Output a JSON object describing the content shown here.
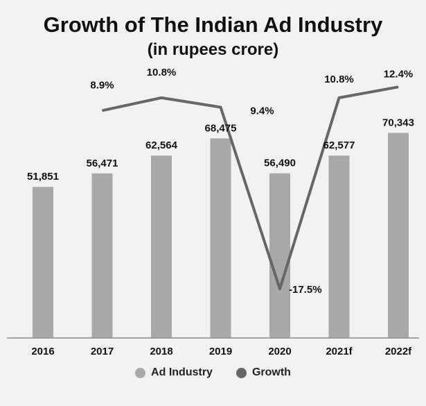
{
  "colors": {
    "bar": "#a8a8a8",
    "line": "#666666",
    "background": "#f2f2f2",
    "axis": "#8c8c8c",
    "text": "#111111"
  },
  "chart_data": {
    "type": "bar",
    "title": "Growth of The Indian Ad Industry",
    "subtitle": "(in rupees crore)",
    "categories": [
      "2016",
      "2017",
      "2018",
      "2019",
      "2020",
      "2021f",
      "2022f"
    ],
    "series": [
      {
        "name": "Ad Industry",
        "type": "bar",
        "values": [
          51851,
          56471,
          62564,
          68475,
          56490,
          62577,
          70343
        ],
        "labels": [
          "51,851",
          "56,471",
          "62,564",
          "68,475",
          "56,490",
          "62,577",
          "70,343"
        ]
      },
      {
        "name": "Growth",
        "type": "line",
        "values": [
          null,
          8.9,
          10.8,
          9.4,
          -17.5,
          10.8,
          12.4
        ],
        "labels": [
          "",
          "8.9%",
          "10.8%",
          "9.4%",
          "-17.5%",
          "10.8%",
          "12.4%"
        ]
      }
    ],
    "bar_ylim": [
      0,
      85000
    ],
    "growth_ylim": [
      -22,
      15
    ],
    "legend_position": "bottom",
    "grid": false
  }
}
